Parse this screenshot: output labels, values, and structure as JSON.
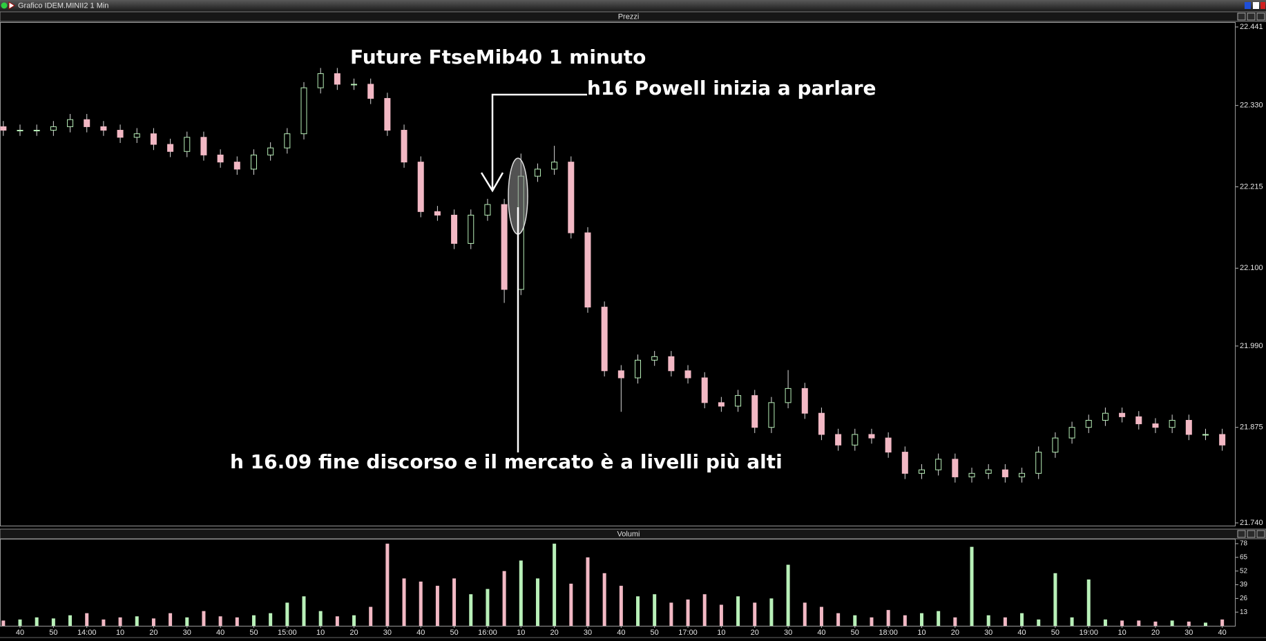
{
  "window": {
    "title": "Grafico IDEM.MINII2 1 Min"
  },
  "chart_data": [
    {
      "type": "candlestick",
      "panel_title": "Prezzi",
      "annotations": [
        "Future FtseMib40 1 minuto",
        "h16 Powell inizia a parlare",
        "h 16.09 fine discorso e il mercato è a livelli più alti"
      ],
      "colors": {
        "up": "#b8f0b8",
        "down": "#f2b8c4",
        "wick": "#d8d8d8"
      },
      "x": [
        "13:35",
        "13:40",
        "13:45",
        "13:50",
        "13:55",
        "14:00",
        "14:05",
        "14:10",
        "14:15",
        "14:20",
        "14:25",
        "14:30",
        "14:35",
        "14:40",
        "14:45",
        "14:50",
        "14:55",
        "15:00",
        "15:05",
        "15:10",
        "15:15",
        "15:20",
        "15:25",
        "15:30",
        "15:35",
        "15:40",
        "15:45",
        "15:50",
        "15:55",
        "16:00",
        "16:05",
        "16:10",
        "16:15",
        "16:20",
        "16:25",
        "16:30",
        "16:35",
        "16:40",
        "16:45",
        "16:50",
        "16:55",
        "17:00",
        "17:05",
        "17:10",
        "17:15",
        "17:20",
        "17:25",
        "17:30",
        "17:35",
        "17:40",
        "17:45",
        "17:50",
        "17:55",
        "18:00",
        "18:05",
        "18:10",
        "18:15",
        "18:20",
        "18:25",
        "18:30",
        "18:35",
        "18:40",
        "18:45",
        "18:50",
        "18:55",
        "19:00",
        "19:05",
        "19:10",
        "19:15",
        "19:20",
        "19:25",
        "19:30",
        "19:35",
        "19:40"
      ],
      "open": [
        22.3,
        22.295,
        22.295,
        22.295,
        22.3,
        22.31,
        22.3,
        22.295,
        22.285,
        22.29,
        22.275,
        22.265,
        22.285,
        22.26,
        22.25,
        22.24,
        22.26,
        22.27,
        22.29,
        22.355,
        22.375,
        22.36,
        22.36,
        22.34,
        22.295,
        22.25,
        22.18,
        22.175,
        22.135,
        22.175,
        22.19,
        22.07,
        22.23,
        22.24,
        22.25,
        22.15,
        22.045,
        21.955,
        21.945,
        21.97,
        21.975,
        21.955,
        21.945,
        21.91,
        21.905,
        21.92,
        21.875,
        21.91,
        21.93,
        21.895,
        21.865,
        21.85,
        21.865,
        21.86,
        21.84,
        21.81,
        21.815,
        21.83,
        21.805,
        21.81,
        21.815,
        21.805,
        21.81,
        21.84,
        21.86,
        21.875,
        21.885,
        21.895,
        21.89,
        21.88,
        21.875,
        21.885,
        21.865,
        21.865
      ],
      "high": [
        22.308,
        22.303,
        22.303,
        22.308,
        22.318,
        22.318,
        22.308,
        22.303,
        22.298,
        22.298,
        22.283,
        22.293,
        22.293,
        22.268,
        22.258,
        22.268,
        22.278,
        22.298,
        22.363,
        22.383,
        22.383,
        22.368,
        22.368,
        22.348,
        22.303,
        22.258,
        22.188,
        22.183,
        22.183,
        22.198,
        22.198,
        22.262,
        22.248,
        22.273,
        22.258,
        22.158,
        22.053,
        21.963,
        21.978,
        21.983,
        21.983,
        21.963,
        21.953,
        21.918,
        21.928,
        21.928,
        21.918,
        21.956,
        21.938,
        21.903,
        21.873,
        21.873,
        21.873,
        21.868,
        21.848,
        21.823,
        21.838,
        21.838,
        21.818,
        21.823,
        21.823,
        21.818,
        21.848,
        21.868,
        21.883,
        21.893,
        21.903,
        21.903,
        21.898,
        21.888,
        21.893,
        21.893,
        21.873,
        21.873
      ],
      "low": [
        22.287,
        22.287,
        22.287,
        22.287,
        22.292,
        22.292,
        22.287,
        22.277,
        22.277,
        22.267,
        22.257,
        22.257,
        22.252,
        22.242,
        22.232,
        22.232,
        22.252,
        22.262,
        22.282,
        22.347,
        22.352,
        22.352,
        22.332,
        22.287,
        22.242,
        22.172,
        22.167,
        22.127,
        22.127,
        22.167,
        22.051,
        22.062,
        22.222,
        22.232,
        22.142,
        22.037,
        21.947,
        21.897,
        21.937,
        21.962,
        21.947,
        21.937,
        21.902,
        21.897,
        21.897,
        21.867,
        21.867,
        21.902,
        21.887,
        21.857,
        21.842,
        21.842,
        21.852,
        21.832,
        21.802,
        21.802,
        21.807,
        21.797,
        21.797,
        21.802,
        21.797,
        21.797,
        21.802,
        21.832,
        21.852,
        21.867,
        21.877,
        21.882,
        21.872,
        21.867,
        21.867,
        21.857,
        21.857,
        21.842
      ],
      "close": [
        22.295,
        22.295,
        22.295,
        22.3,
        22.31,
        22.3,
        22.295,
        22.285,
        22.29,
        22.275,
        22.265,
        22.285,
        22.26,
        22.25,
        22.24,
        22.26,
        22.27,
        22.29,
        22.355,
        22.375,
        22.36,
        22.36,
        22.34,
        22.295,
        22.25,
        22.18,
        22.175,
        22.135,
        22.175,
        22.19,
        22.07,
        22.23,
        22.24,
        22.25,
        22.15,
        22.045,
        21.955,
        21.945,
        21.97,
        21.975,
        21.955,
        21.945,
        21.91,
        21.905,
        21.92,
        21.875,
        21.91,
        21.93,
        21.895,
        21.865,
        21.85,
        21.865,
        21.86,
        21.84,
        21.81,
        21.815,
        21.83,
        21.805,
        21.81,
        21.815,
        21.805,
        21.81,
        21.84,
        21.86,
        21.875,
        21.885,
        21.895,
        21.89,
        21.88,
        21.875,
        21.885,
        21.865,
        21.865,
        21.85
      ],
      "ylim": [
        21.74,
        22.441
      ],
      "yticks": [
        22.441,
        {
          "value": 22.33,
          "label": "22.330"
        },
        22.215,
        {
          "value": 22.1,
          "label": "22.100"
        },
        {
          "value": 21.99,
          "label": "21.990"
        },
        21.875,
        {
          "value": 21.74,
          "label": "21.740"
        }
      ]
    },
    {
      "type": "bar",
      "panel_title": "Volumi",
      "values": [
        5,
        6,
        8,
        7,
        10,
        12,
        6,
        8,
        9,
        7,
        12,
        8,
        14,
        9,
        8,
        10,
        12,
        22,
        28,
        14,
        9,
        10,
        18,
        78,
        45,
        42,
        38,
        45,
        30,
        35,
        52,
        62,
        45,
        78,
        40,
        65,
        50,
        38,
        28,
        30,
        22,
        25,
        30,
        20,
        28,
        22,
        26,
        58,
        22,
        18,
        12,
        10,
        8,
        15,
        10,
        12,
        14,
        8,
        75,
        10,
        8,
        12,
        6,
        50,
        8,
        44,
        6,
        5,
        5,
        4,
        5,
        4,
        3,
        6
      ],
      "ylim": [
        0,
        82
      ],
      "yticks": [
        13,
        26,
        39,
        52,
        65,
        78
      ],
      "xlim": [
        "13:34",
        "19:44"
      ],
      "xticks": [
        {
          "value": "13:40",
          "label": "40"
        },
        {
          "value": "13:50",
          "label": "50"
        },
        {
          "value": "14:00",
          "label": "14:00"
        },
        {
          "value": "14:10",
          "label": "10"
        },
        {
          "value": "14:20",
          "label": "20"
        },
        {
          "value": "14:30",
          "label": "30"
        },
        {
          "value": "14:40",
          "label": "40"
        },
        {
          "value": "14:50",
          "label": "50"
        },
        {
          "value": "15:00",
          "label": "15:00"
        },
        {
          "value": "15:10",
          "label": "10"
        },
        {
          "value": "15:20",
          "label": "20"
        },
        {
          "value": "15:30",
          "label": "30"
        },
        {
          "value": "15:40",
          "label": "40"
        },
        {
          "value": "15:50",
          "label": "50"
        },
        {
          "value": "16:00",
          "label": "16:00"
        },
        {
          "value": "16:10",
          "label": "10"
        },
        {
          "value": "16:20",
          "label": "20"
        },
        {
          "value": "16:30",
          "label": "30"
        },
        {
          "value": "16:40",
          "label": "40"
        },
        {
          "value": "16:50",
          "label": "50"
        },
        {
          "value": "17:00",
          "label": "17:00"
        },
        {
          "value": "17:10",
          "label": "10"
        },
        {
          "value": "17:20",
          "label": "20"
        },
        {
          "value": "17:30",
          "label": "30"
        },
        {
          "value": "17:40",
          "label": "40"
        },
        {
          "value": "17:50",
          "label": "50"
        },
        {
          "value": "18:00",
          "label": "18:00"
        },
        {
          "value": "18:10",
          "label": "10"
        },
        {
          "value": "18:20",
          "label": "20"
        },
        {
          "value": "18:30",
          "label": "30"
        },
        {
          "value": "18:40",
          "label": "40"
        },
        {
          "value": "18:50",
          "label": "50"
        },
        {
          "value": "19:00",
          "label": "19:00"
        },
        {
          "value": "19:10",
          "label": "10"
        },
        {
          "value": "19:20",
          "label": "20"
        },
        {
          "value": "19:30",
          "label": "30"
        },
        {
          "value": "19:40",
          "label": "40"
        }
      ]
    }
  ]
}
